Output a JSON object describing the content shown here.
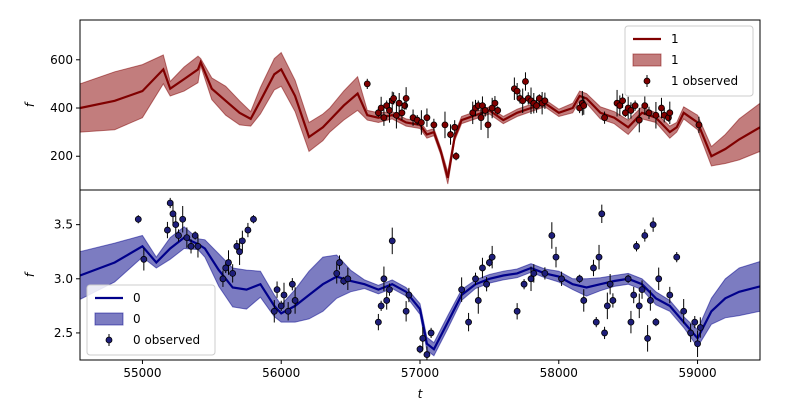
{
  "chart_data": [
    {
      "type": "line",
      "panel": "top",
      "ylabel": "f",
      "xlim": [
        54550,
        59450
      ],
      "ylim": [
        60,
        765
      ],
      "yticks": [
        200,
        400,
        600
      ],
      "grid": false,
      "legend_position": "top-right",
      "colors": {
        "line": "#800000",
        "band": "#b35c5c",
        "points": "#800000"
      },
      "series": [
        {
          "name": "1",
          "kind": "model-line"
        },
        {
          "name": "1",
          "kind": "uncertainty-band"
        },
        {
          "name": "1 observed",
          "kind": "observed-points"
        }
      ],
      "model_x": [
        54550,
        54800,
        55000,
        55150,
        55200,
        55300,
        55400,
        55420,
        55500,
        55600,
        55700,
        55780,
        55850,
        55950,
        56000,
        56100,
        56200,
        56300,
        56350,
        56450,
        56550,
        56620,
        56700,
        56800,
        56900,
        57000,
        57050,
        57100,
        57150,
        57200,
        57250,
        57300,
        57400,
        57500,
        57600,
        57700,
        57800,
        57900,
        58000,
        58100,
        58150,
        58200,
        58300,
        58400,
        58500,
        58600,
        58700,
        58800,
        58850,
        58900,
        59000,
        59100,
        59200,
        59300,
        59450
      ],
      "model_y": [
        400,
        430,
        470,
        560,
        480,
        520,
        560,
        590,
        480,
        430,
        380,
        355,
        430,
        540,
        560,
        450,
        280,
        320,
        350,
        410,
        460,
        370,
        360,
        370,
        340,
        330,
        290,
        300,
        220,
        110,
        280,
        350,
        370,
        390,
        350,
        380,
        400,
        420,
        380,
        400,
        450,
        440,
        380,
        360,
        320,
        380,
        360,
        300,
        320,
        380,
        340,
        200,
        230,
        270,
        320
      ],
      "band_half_width": [
        100,
        120,
        110,
        60,
        30,
        50,
        55,
        15,
        45,
        60,
        50,
        30,
        55,
        65,
        70,
        65,
        60,
        55,
        50,
        60,
        70,
        20,
        20,
        15,
        15,
        15,
        15,
        15,
        15,
        25,
        15,
        15,
        15,
        15,
        15,
        15,
        15,
        15,
        15,
        20,
        20,
        20,
        25,
        25,
        30,
        25,
        20,
        25,
        20,
        25,
        30,
        40,
        60,
        85,
        100
      ],
      "observed_x": [
        56700,
        56720,
        56740,
        56760,
        56780,
        56800,
        56810,
        56830,
        56850,
        56870,
        56890,
        56900,
        56950,
        56980,
        57010,
        57050,
        57100,
        57180,
        57220,
        57250,
        57260,
        57380,
        57400,
        57420,
        57440,
        57450,
        57470,
        57490,
        57520,
        57540,
        57560,
        57680,
        57700,
        57720,
        57740,
        57760,
        57780,
        57800,
        57820,
        57840,
        57860,
        57880,
        57900,
        58150,
        58170,
        58180,
        58330,
        58420,
        58440,
        58460,
        58480,
        58500,
        58520,
        58550,
        58580,
        58620,
        58650,
        58700,
        58740,
        58760,
        58790,
        58800,
        59010,
        56620
      ],
      "observed_y": [
        380,
        400,
        360,
        410,
        390,
        430,
        440,
        370,
        420,
        380,
        410,
        440,
        360,
        350,
        340,
        360,
        330,
        330,
        290,
        320,
        200,
        380,
        400,
        410,
        360,
        410,
        390,
        330,
        400,
        420,
        390,
        480,
        470,
        440,
        430,
        510,
        440,
        430,
        420,
        410,
        440,
        420,
        430,
        400,
        420,
        410,
        360,
        420,
        410,
        430,
        380,
        400,
        390,
        410,
        350,
        410,
        380,
        370,
        400,
        370,
        360,
        380,
        330,
        500
      ],
      "legend": [
        {
          "symbol": "line",
          "label": "1"
        },
        {
          "symbol": "band",
          "label": "1"
        },
        {
          "symbol": "errorbar",
          "label": "1 observed"
        }
      ]
    },
    {
      "type": "line",
      "panel": "bottom",
      "xlabel": "t",
      "ylabel": "f",
      "xlim": [
        54550,
        59450
      ],
      "ylim": [
        2.25,
        3.82
      ],
      "xticks": [
        55000,
        56000,
        57000,
        58000,
        59000
      ],
      "yticks": [
        2.5,
        3.0,
        3.5
      ],
      "grid": false,
      "legend_position": "bottom-left",
      "colors": {
        "line": "#00008b",
        "band": "#5b5bb2",
        "points": "#1e1e7a"
      },
      "series": [
        {
          "name": "0",
          "kind": "model-line"
        },
        {
          "name": "0",
          "kind": "uncertainty-band"
        },
        {
          "name": "0 observed",
          "kind": "observed-points"
        }
      ],
      "model_x": [
        54550,
        54800,
        55000,
        55100,
        55200,
        55300,
        55400,
        55450,
        55550,
        55650,
        55750,
        55850,
        55950,
        56000,
        56100,
        56200,
        56300,
        56400,
        56500,
        56600,
        56700,
        56800,
        56900,
        57000,
        57050,
        57100,
        57200,
        57300,
        57400,
        57500,
        57600,
        57700,
        57800,
        57900,
        58000,
        58100,
        58200,
        58300,
        58400,
        58500,
        58600,
        58700,
        58800,
        58900,
        59000,
        59100,
        59200,
        59300,
        59450
      ],
      "model_y": [
        3.03,
        3.15,
        3.3,
        3.15,
        3.28,
        3.38,
        3.32,
        3.28,
        3.08,
        2.92,
        2.9,
        2.95,
        2.75,
        2.68,
        2.75,
        2.85,
        2.95,
        3.02,
        2.98,
        2.95,
        2.9,
        2.95,
        2.88,
        2.72,
        2.4,
        2.35,
        2.6,
        2.85,
        2.95,
        3.0,
        3.03,
        3.05,
        3.1,
        3.05,
        3.02,
        2.95,
        2.92,
        2.95,
        2.98,
        3.0,
        2.95,
        2.82,
        2.75,
        2.6,
        2.45,
        2.7,
        2.82,
        2.88,
        2.93
      ],
      "band_half_width": [
        0.22,
        0.18,
        0.1,
        0.05,
        0.1,
        0.1,
        0.05,
        0.08,
        0.15,
        0.18,
        0.18,
        0.12,
        0.1,
        0.08,
        0.15,
        0.22,
        0.25,
        0.2,
        0.1,
        0.04,
        0.04,
        0.04,
        0.04,
        0.05,
        0.06,
        0.06,
        0.06,
        0.05,
        0.04,
        0.04,
        0.04,
        0.04,
        0.04,
        0.04,
        0.05,
        0.05,
        0.08,
        0.06,
        0.05,
        0.05,
        0.05,
        0.06,
        0.05,
        0.05,
        0.08,
        0.12,
        0.18,
        0.22,
        0.23
      ],
      "observed_x": [
        54970,
        55010,
        55180,
        55200,
        55220,
        55240,
        55260,
        55290,
        55320,
        55350,
        55380,
        55400,
        55580,
        55600,
        55620,
        55650,
        55680,
        55700,
        55720,
        55760,
        55800,
        55950,
        55970,
        56000,
        56020,
        56050,
        56080,
        56100,
        56400,
        56420,
        56450,
        56480,
        56700,
        56720,
        56740,
        56760,
        56780,
        56800,
        56900,
        56920,
        57000,
        57020,
        57050,
        57080,
        57300,
        57350,
        57400,
        57420,
        57450,
        57480,
        57500,
        57520,
        57700,
        57750,
        57800,
        57820,
        57900,
        57950,
        57980,
        58020,
        58150,
        58180,
        58250,
        58270,
        58290,
        58310,
        58330,
        58350,
        58370,
        58390,
        58500,
        58520,
        58540,
        58560,
        58580,
        58600,
        58620,
        58640,
        58660,
        58680,
        58700,
        58720,
        58800,
        58850,
        58900,
        58950,
        58980,
        59000,
        59020
      ],
      "observed_y": [
        3.55,
        3.18,
        3.45,
        3.7,
        3.6,
        3.5,
        3.4,
        3.55,
        3.38,
        3.3,
        3.4,
        3.3,
        3.0,
        3.1,
        3.15,
        3.05,
        3.3,
        3.25,
        3.35,
        3.45,
        3.55,
        2.7,
        2.9,
        2.75,
        2.85,
        2.7,
        2.95,
        2.8,
        3.05,
        3.15,
        2.98,
        3.0,
        2.6,
        2.75,
        3.0,
        2.8,
        2.9,
        3.35,
        2.7,
        2.85,
        2.35,
        2.45,
        2.3,
        2.5,
        2.9,
        2.6,
        3.0,
        2.8,
        3.1,
        2.95,
        3.15,
        3.2,
        2.7,
        2.95,
        3.0,
        3.05,
        3.05,
        3.4,
        3.2,
        3.0,
        3.0,
        2.8,
        3.1,
        2.6,
        3.2,
        3.6,
        2.5,
        2.75,
        2.95,
        2.8,
        3.0,
        2.6,
        2.85,
        3.3,
        2.75,
        2.9,
        3.4,
        2.45,
        2.8,
        3.5,
        2.6,
        3.0,
        2.85,
        3.2,
        2.7,
        2.5,
        2.6,
        2.4,
        2.55
      ],
      "legend": [
        {
          "symbol": "line",
          "label": "0"
        },
        {
          "symbol": "band",
          "label": "0"
        },
        {
          "symbol": "errorbar",
          "label": "0 observed"
        }
      ]
    }
  ]
}
